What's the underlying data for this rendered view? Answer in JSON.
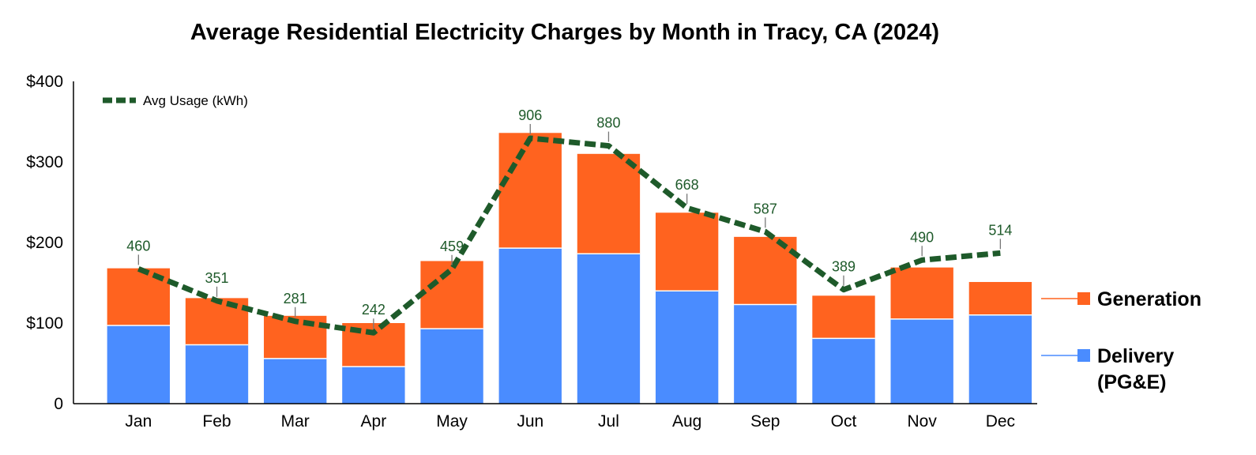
{
  "chart_data": {
    "type": "bar",
    "title": "Average Residential Electricity Charges by Month in Tracy, CA (2024)",
    "categories": [
      "Jan",
      "Feb",
      "Mar",
      "Apr",
      "May",
      "Jun",
      "Jul",
      "Aug",
      "Sep",
      "Oct",
      "Nov",
      "Dec"
    ],
    "y_ticks": [
      "0",
      "$100",
      "$200",
      "$300",
      "$400"
    ],
    "ylim": [
      0,
      400
    ],
    "stacked": true,
    "series": [
      {
        "name": "Delivery (PG&E)",
        "name_lines": [
          "Delivery",
          "(PG&E)"
        ],
        "color": "#4a8cff",
        "values": [
          97,
          73,
          56,
          46,
          93,
          193,
          186,
          140,
          123,
          81,
          105,
          110
        ]
      },
      {
        "name": "Generation",
        "name_lines": [
          "Generation"
        ],
        "color": "#ff631f",
        "values": [
          71,
          58,
          53,
          54,
          84,
          143,
          124,
          97,
          84,
          53,
          64,
          41
        ]
      }
    ],
    "line_series": {
      "name": "Avg Usage (kWh)",
      "color": "#1e5a2a",
      "values": [
        460,
        351,
        281,
        242,
        459,
        906,
        880,
        668,
        587,
        389,
        490,
        514
      ],
      "labels": [
        "460",
        "351",
        "281",
        "242",
        "459",
        "906",
        "880",
        "668",
        "587",
        "389",
        "490",
        "514"
      ],
      "scale_max": 1100
    },
    "grid": false,
    "legend": "right"
  }
}
